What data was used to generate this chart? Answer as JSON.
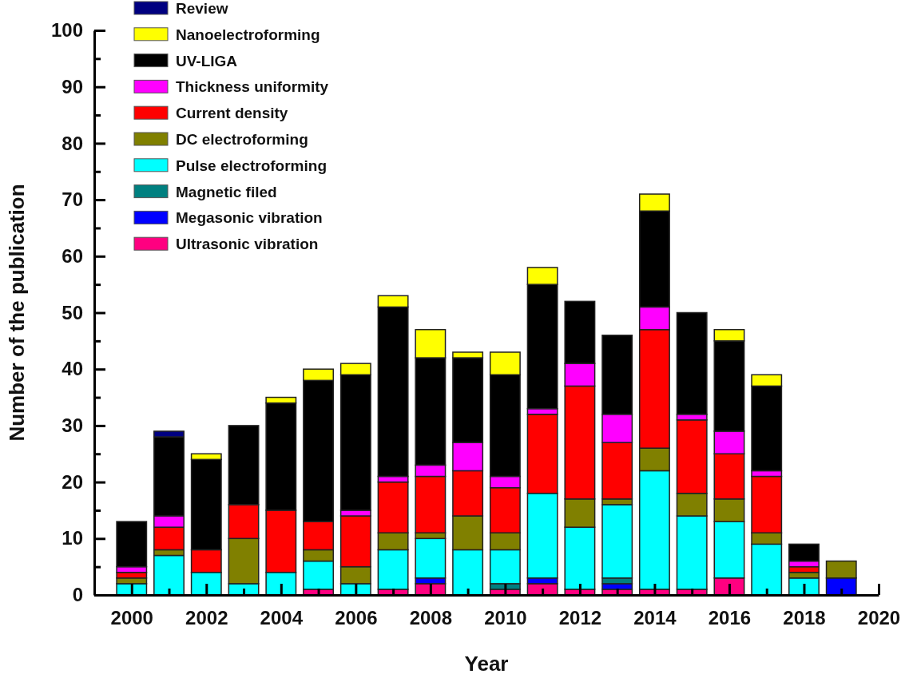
{
  "chart_data": {
    "type": "bar",
    "stacked": true,
    "xlabel": "Year",
    "ylabel": "Number of the publication",
    "x": [
      2000,
      2001,
      2002,
      2003,
      2004,
      2005,
      2006,
      2007,
      2008,
      2009,
      2010,
      2011,
      2012,
      2013,
      2014,
      2015,
      2016,
      2017,
      2018,
      2019
    ],
    "xlim": [
      1999,
      2020
    ],
    "xticks": [
      2000,
      {
        "value": 2001,
        "label": null
      },
      2002,
      {
        "value": 2003,
        "label": null
      },
      2004,
      {
        "value": 2005,
        "label": null
      },
      2006,
      {
        "value": 2007,
        "label": null
      },
      2008,
      {
        "value": 2009,
        "label": null
      },
      2010,
      {
        "value": 2011,
        "label": null
      },
      2012,
      {
        "value": 2013,
        "label": null
      },
      2014,
      {
        "value": 2015,
        "label": null
      },
      2016,
      {
        "value": 2017,
        "label": null
      },
      2018,
      {
        "value": 2019,
        "label": null
      },
      2020
    ],
    "ylim": [
      0,
      100
    ],
    "yticks": [
      0,
      {
        "value": 5,
        "label": null
      },
      10,
      {
        "value": 15,
        "label": null
      },
      20,
      {
        "value": 25,
        "label": null
      },
      30,
      {
        "value": 35,
        "label": null
      },
      40,
      {
        "value": 45,
        "label": null
      },
      50,
      {
        "value": 55,
        "label": null
      },
      60,
      {
        "value": 65,
        "label": null
      },
      70,
      {
        "value": 75,
        "label": null
      },
      80,
      {
        "value": 85,
        "label": null
      },
      90,
      {
        "value": 95,
        "label": null
      },
      100
    ],
    "grid": false,
    "legend": "top left",
    "series": [
      {
        "name": "Ultrasonic vibration",
        "color": "#ff0080",
        "values": [
          0,
          0,
          0,
          0,
          0,
          1,
          0,
          1,
          2,
          0,
          1,
          2,
          1,
          1,
          1,
          1,
          3,
          0,
          0,
          0
        ]
      },
      {
        "name": "Megasonic vibration",
        "color": "#0000ff",
        "values": [
          0,
          0,
          0,
          0,
          0,
          0,
          0,
          0,
          1,
          0,
          0,
          1,
          0,
          1,
          0,
          0,
          0,
          0,
          0,
          3
        ]
      },
      {
        "name": "Magnetic filed",
        "color": "#008080",
        "values": [
          0,
          0,
          0,
          0,
          0,
          0,
          0,
          0,
          0,
          0,
          1,
          0,
          0,
          1,
          0,
          0,
          0,
          0,
          0,
          0
        ]
      },
      {
        "name": "Pulse electroforming",
        "color": "#00ffff",
        "values": [
          2,
          7,
          4,
          2,
          4,
          5,
          2,
          7,
          7,
          8,
          6,
          15,
          11,
          13,
          21,
          13,
          10,
          9,
          3,
          0
        ]
      },
      {
        "name": "DC electroforming",
        "color": "#808000",
        "values": [
          1,
          1,
          0,
          8,
          0,
          2,
          3,
          3,
          1,
          6,
          3,
          0,
          5,
          1,
          4,
          4,
          4,
          2,
          1,
          3
        ]
      },
      {
        "name": "Current density",
        "color": "#ff0000",
        "values": [
          1,
          4,
          4,
          6,
          11,
          5,
          9,
          9,
          10,
          8,
          8,
          14,
          20,
          10,
          21,
          13,
          8,
          10,
          1,
          0
        ]
      },
      {
        "name": "Thickness uniformity",
        "color": "#ff00ff",
        "values": [
          1,
          2,
          0,
          0,
          0,
          0,
          1,
          1,
          2,
          5,
          2,
          1,
          4,
          5,
          4,
          1,
          4,
          1,
          1,
          0
        ]
      },
      {
        "name": "UV-LIGA",
        "color": "#000000",
        "values": [
          8,
          14,
          16,
          14,
          19,
          25,
          24,
          30,
          19,
          15,
          18,
          22,
          11,
          14,
          17,
          18,
          16,
          15,
          3,
          0
        ]
      },
      {
        "name": "Nanoelectroforming",
        "color": "#ffff00",
        "values": [
          0,
          0,
          1,
          0,
          1,
          2,
          2,
          2,
          5,
          1,
          4,
          3,
          0,
          0,
          3,
          0,
          2,
          2,
          0,
          0
        ]
      },
      {
        "name": "Review",
        "color": "#000080",
        "values": [
          0,
          1,
          0,
          0,
          0,
          0,
          0,
          0,
          0,
          0,
          0,
          0,
          0,
          0,
          0,
          0,
          0,
          0,
          0,
          0
        ]
      }
    ]
  }
}
